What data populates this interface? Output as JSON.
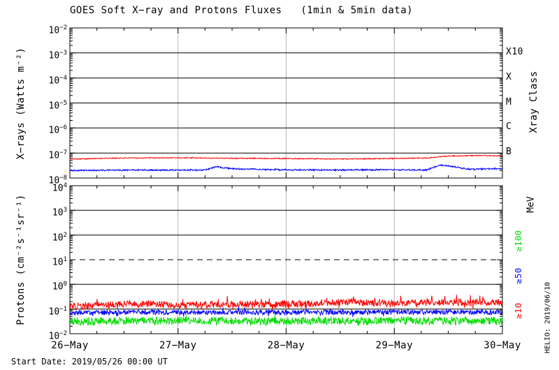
{
  "title": "GOES Soft X−ray and Protons Fluxes   (1min & 5min data)",
  "start_date_label": "Start Date: 2019/05/26 00:00 UT",
  "credit_vertical": "HELIO: 2019/06/10",
  "colors": {
    "red": "#ff0000",
    "blue": "#0000ff",
    "green": "#00ee00",
    "grid_gray": "#b4b4b4",
    "axis": "#000000",
    "background": "#ffffff"
  },
  "x_axis": {
    "tick_labels": [
      "26−May",
      "27−May",
      "28−May",
      "29−May",
      "30−May"
    ],
    "span_days": 4,
    "minor_ticks_per_day": 4,
    "gray_vline_days": [
      1,
      2,
      3
    ]
  },
  "chart_data": [
    {
      "type": "line",
      "panel": "xray",
      "ylabel": "X−rays (Watts m⁻²)",
      "right_axis_title": "Xray Class",
      "y_log_range_exp": [
        -8,
        -2
      ],
      "y_tick_exponents": [
        -2,
        -3,
        -4,
        -5,
        -6,
        -7,
        -8
      ],
      "solid_hline_exponents": [
        -3,
        -4,
        -5,
        -6,
        -7
      ],
      "dashed_hline_exponents": [],
      "right_labels": [
        {
          "text": "X10",
          "exp": -3,
          "color": "#000000"
        },
        {
          "text": "X",
          "exp": -4,
          "color": "#000000"
        },
        {
          "text": "M",
          "exp": -5,
          "color": "#000000"
        },
        {
          "text": "C",
          "exp": -6,
          "color": "#000000"
        },
        {
          "text": "B",
          "exp": -7,
          "color": "#000000"
        }
      ],
      "series": [
        {
          "name": "xray-long-1-8A",
          "color": "#ff0000",
          "noise_dex": 0.02,
          "anchors_day_log10flux": [
            [
              0,
              -7.24
            ],
            [
              0.5,
              -7.2
            ],
            [
              1.0,
              -7.19
            ],
            [
              1.5,
              -7.21
            ],
            [
              2.0,
              -7.22
            ],
            [
              2.5,
              -7.24
            ],
            [
              3.0,
              -7.22
            ],
            [
              3.3,
              -7.2
            ],
            [
              3.5,
              -7.12
            ],
            [
              3.8,
              -7.1
            ],
            [
              4,
              -7.12
            ]
          ]
        },
        {
          "name": "xray-short-05-4A",
          "color": "#0000ff",
          "noise_dex": 0.03,
          "anchors_day_log10flux": [
            [
              0,
              -7.7
            ],
            [
              0.6,
              -7.68
            ],
            [
              1.25,
              -7.68
            ],
            [
              1.35,
              -7.55
            ],
            [
              1.5,
              -7.63
            ],
            [
              2.0,
              -7.67
            ],
            [
              2.5,
              -7.68
            ],
            [
              3.0,
              -7.67
            ],
            [
              3.3,
              -7.68
            ],
            [
              3.42,
              -7.48
            ],
            [
              3.55,
              -7.55
            ],
            [
              3.7,
              -7.65
            ],
            [
              4,
              -7.62
            ]
          ]
        }
      ]
    },
    {
      "type": "line",
      "panel": "protons",
      "ylabel": "Protons (cm⁻²s⁻¹sr⁻¹)",
      "right_axis_title": "MeV",
      "y_log_range_exp": [
        -2,
        4
      ],
      "y_tick_exponents": [
        4,
        3,
        2,
        1,
        0,
        -1,
        -2
      ],
      "solid_hline_exponents": [
        3,
        2,
        0,
        -1
      ],
      "dashed_hline_exponents": [
        1
      ],
      "right_labels": [
        {
          "text": "≥100",
          "exp": 1.76,
          "color": "#00dd00"
        },
        {
          "text": "≥50",
          "exp": 0.35,
          "color": "#0000ff"
        },
        {
          "text": "≥10",
          "exp": -1.07,
          "color": "#ff0000"
        }
      ],
      "series": [
        {
          "name": "protons-ge10MeV",
          "color": "#ff0000",
          "noise_dex": 0.14,
          "spike_dex": 0.25,
          "anchors_day_log10flux": [
            [
              0,
              -0.92
            ],
            [
              0.3,
              -0.82
            ],
            [
              0.7,
              -0.78
            ],
            [
              1.0,
              -0.85
            ],
            [
              1.4,
              -0.8
            ],
            [
              1.8,
              -0.82
            ],
            [
              2.2,
              -0.78
            ],
            [
              2.6,
              -0.72
            ],
            [
              3.0,
              -0.78
            ],
            [
              3.2,
              -0.75
            ],
            [
              3.6,
              -0.72
            ],
            [
              4,
              -0.76
            ]
          ]
        },
        {
          "name": "protons-ge50MeV",
          "color": "#0000ff",
          "noise_dex": 0.1,
          "spike_dex": 0.15,
          "anchors_day_log10flux": [
            [
              0,
              -1.15
            ],
            [
              1,
              -1.13
            ],
            [
              2,
              -1.14
            ],
            [
              3,
              -1.12
            ],
            [
              4,
              -1.13
            ]
          ]
        },
        {
          "name": "protons-ge100MeV",
          "color": "#00dd00",
          "noise_dex": 0.16,
          "spike_dex": 0.12,
          "anchors_day_log10flux": [
            [
              0,
              -1.5
            ],
            [
              1,
              -1.48
            ],
            [
              2,
              -1.5
            ],
            [
              3,
              -1.47
            ],
            [
              4,
              -1.49
            ]
          ]
        }
      ]
    }
  ]
}
